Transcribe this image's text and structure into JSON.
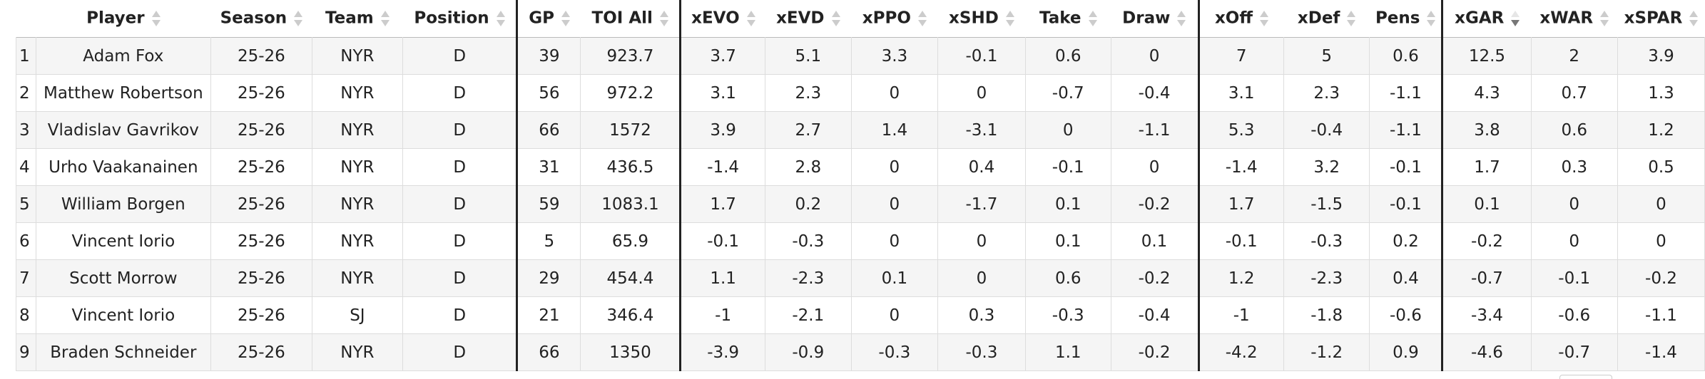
{
  "table": {
    "columns": [
      "Player",
      "Season",
      "Team",
      "Position",
      "GP",
      "TOI All",
      "xEVO",
      "xEVD",
      "xPPO",
      "xSHD",
      "Take",
      "Draw",
      "xOff",
      "xDef",
      "Pens",
      "xGAR",
      "xWAR",
      "xSPAR"
    ],
    "sorted_column": "xGAR",
    "rows": [
      [
        "1",
        "Adam Fox",
        "25-26",
        "NYR",
        "D",
        39,
        923.7,
        3.7,
        5.1,
        3.3,
        -0.1,
        0.6,
        0,
        7,
        5,
        0.6,
        12.5,
        2,
        3.9
      ],
      [
        "2",
        "Matthew Robertson",
        "25-26",
        "NYR",
        "D",
        56,
        972.2,
        3.1,
        2.3,
        0,
        0,
        -0.7,
        -0.4,
        3.1,
        2.3,
        -1.1,
        4.3,
        0.7,
        1.3
      ],
      [
        "3",
        "Vladislav Gavrikov",
        "25-26",
        "NYR",
        "D",
        66,
        1572,
        3.9,
        2.7,
        1.4,
        -3.1,
        0,
        -1.1,
        5.3,
        -0.4,
        -1.1,
        3.8,
        0.6,
        1.2
      ],
      [
        "4",
        "Urho Vaakanainen",
        "25-26",
        "NYR",
        "D",
        31,
        436.5,
        -1.4,
        2.8,
        0,
        0.4,
        -0.1,
        0,
        -1.4,
        3.2,
        -0.1,
        1.7,
        0.3,
        0.5
      ],
      [
        "5",
        "William Borgen",
        "25-26",
        "NYR",
        "D",
        59,
        1083.1,
        1.7,
        0.2,
        0,
        -1.7,
        0.1,
        -0.2,
        1.7,
        -1.5,
        -0.1,
        0.1,
        0,
        0
      ],
      [
        "6",
        "Vincent Iorio",
        "25-26",
        "NYR",
        "D",
        5,
        65.9,
        -0.1,
        -0.3,
        0,
        0,
        0.1,
        0.1,
        -0.1,
        -0.3,
        0.2,
        -0.2,
        0,
        0
      ],
      [
        "7",
        "Scott Morrow",
        "25-26",
        "NYR",
        "D",
        29,
        454.4,
        1.1,
        -2.3,
        0.1,
        0,
        0.6,
        -0.2,
        1.2,
        -2.3,
        0.4,
        -0.7,
        -0.1,
        -0.2
      ],
      [
        "8",
        "Vincent Iorio",
        "25-26",
        "SJ",
        "D",
        21,
        346.4,
        -1,
        -2.1,
        0,
        0.3,
        -0.3,
        -0.4,
        -1,
        -1.8,
        -0.6,
        -3.4,
        -0.6,
        -1.1
      ],
      [
        "9",
        "Braden Schneider",
        "25-26",
        "NYR",
        "D",
        66,
        1350,
        -3.9,
        -0.9,
        -0.3,
        -0.3,
        1.1,
        -0.2,
        -4.2,
        -1.2,
        0.9,
        -4.6,
        -0.7,
        -1.4
      ]
    ]
  }
}
